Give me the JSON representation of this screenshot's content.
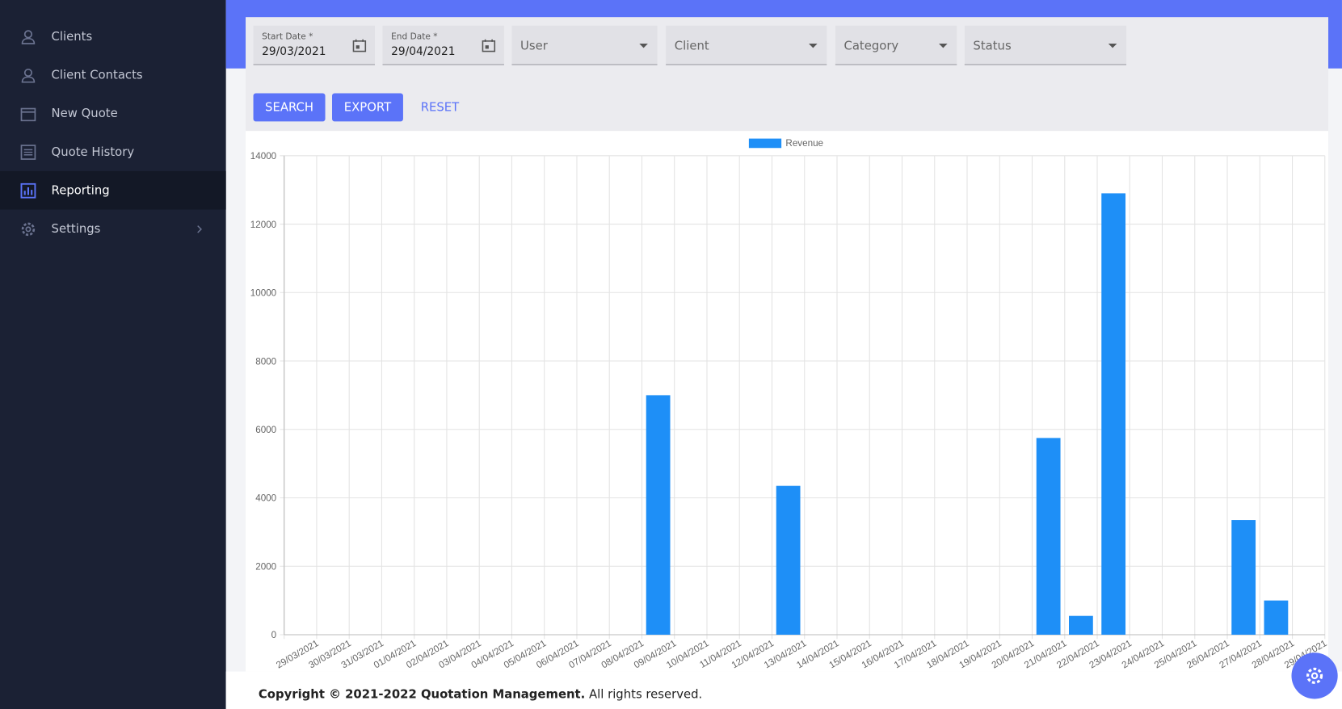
{
  "sidebar": {
    "items": [
      "Clients",
      "Client Contacts",
      "New Quote",
      "Quote History",
      "Reporting",
      "Settings"
    ]
  },
  "filters": {
    "start_date": {
      "label": "Start Date *",
      "value": "29/03/2021"
    },
    "end_date": {
      "label": "End Date *",
      "value": "29/04/2021"
    },
    "user": "User",
    "client": "Client",
    "category": "Category",
    "status": "Status"
  },
  "buttons": [
    "SEARCH",
    "EXPORT",
    "RESET"
  ],
  "chart_data": {
    "type": "bar",
    "categories": [
      "29/03/2021",
      "30/03/2021",
      "31/03/2021",
      "01/04/2021",
      "02/04/2021",
      "03/04/2021",
      "04/04/2021",
      "05/04/2021",
      "06/04/2021",
      "07/04/2021",
      "08/04/2021",
      "09/04/2021",
      "10/04/2021",
      "11/04/2021",
      "12/04/2021",
      "13/04/2021",
      "14/04/2021",
      "15/04/2021",
      "16/04/2021",
      "17/04/2021",
      "18/04/2021",
      "19/04/2021",
      "20/04/2021",
      "21/04/2021",
      "22/04/2021",
      "23/04/2021",
      "24/04/2021",
      "25/04/2021",
      "26/04/2021",
      "27/04/2021",
      "28/04/2021",
      "29/04/2021"
    ],
    "series": [
      {
        "name": "Revenue",
        "color": "#1e8ff7",
        "values": [
          0,
          0,
          0,
          0,
          0,
          0,
          0,
          0,
          0,
          0,
          0,
          7000,
          0,
          0,
          0,
          4350,
          0,
          0,
          0,
          0,
          0,
          0,
          0,
          5750,
          550,
          12900,
          0,
          0,
          0,
          3350,
          1000,
          0
        ]
      }
    ],
    "ylim": [
      0,
      14000
    ],
    "yticks": [
      0,
      2000,
      4000,
      6000,
      8000,
      10000,
      12000,
      14000
    ],
    "grid": true,
    "legend": "top"
  },
  "footer": {
    "bold": "Copyright © 2021-2022 Quotation Management.",
    "rest": " All rights reserved."
  }
}
